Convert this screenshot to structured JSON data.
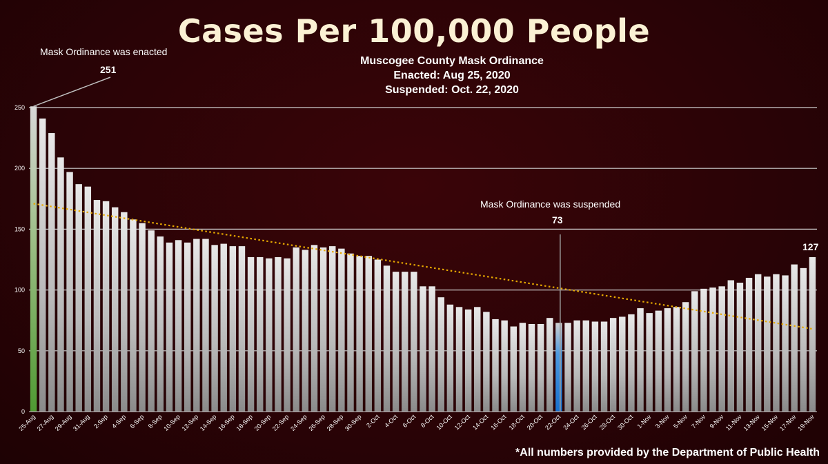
{
  "chart_data": {
    "type": "bar",
    "title": "Cases Per 100,000 People",
    "subtitle_lines": [
      "Muscogee County Mask Ordinance",
      "Enacted: Aug 25, 2020",
      "Suspended: Oct. 22, 2020"
    ],
    "footnote": "*All numbers provided by the Department of Public Health",
    "ylim": [
      0,
      250
    ],
    "yticks": [
      0,
      50,
      100,
      150,
      200,
      250
    ],
    "grid": true,
    "colors": {
      "bar": "#d9d9d9",
      "enacted_bar": "#70ad47",
      "suspended_bar": "#1f7fd6",
      "trendline": "#e6a800",
      "background": "#2a0306"
    },
    "categories": [
      "25-Aug",
      "26-Aug",
      "27-Aug",
      "28-Aug",
      "29-Aug",
      "30-Aug",
      "31-Aug",
      "1-Sep",
      "2-Sep",
      "3-Sep",
      "4-Sep",
      "5-Sep",
      "6-Sep",
      "7-Sep",
      "8-Sep",
      "9-Sep",
      "10-Sep",
      "11-Sep",
      "12-Sep",
      "13-Sep",
      "14-Sep",
      "15-Sep",
      "16-Sep",
      "17-Sep",
      "18-Sep",
      "19-Sep",
      "20-Sep",
      "21-Sep",
      "22-Sep",
      "23-Sep",
      "24-Sep",
      "25-Sep",
      "26-Sep",
      "27-Sep",
      "28-Sep",
      "29-Sep",
      "30-Sep",
      "1-Oct",
      "2-Oct",
      "3-Oct",
      "4-Oct",
      "5-Oct",
      "6-Oct",
      "7-Oct",
      "8-Oct",
      "9-Oct",
      "10-Oct",
      "11-Oct",
      "12-Oct",
      "13-Oct",
      "14-Oct",
      "15-Oct",
      "16-Oct",
      "17-Oct",
      "18-Oct",
      "19-Oct",
      "20-Oct",
      "21-Oct",
      "22-Oct",
      "23-Oct",
      "24-Oct",
      "25-Oct",
      "26-Oct",
      "27-Oct",
      "28-Oct",
      "29-Oct",
      "30-Oct",
      "31-Oct",
      "1-Nov",
      "2-Nov",
      "3-Nov",
      "4-Nov",
      "5-Nov",
      "6-Nov",
      "7-Nov",
      "8-Nov",
      "9-Nov",
      "10-Nov",
      "11-Nov",
      "12-Nov",
      "13-Nov",
      "14-Nov",
      "15-Nov",
      "16-Nov",
      "17-Nov",
      "18-Nov",
      "19-Nov"
    ],
    "xtick_labels": [
      "25-Aug",
      "27-Aug",
      "29-Aug",
      "31-Aug",
      "2-Sep",
      "4-Sep",
      "6-Sep",
      "8-Sep",
      "10-Sep",
      "12-Sep",
      "14-Sep",
      "16-Sep",
      "18-Sep",
      "20-Sep",
      "22-Sep",
      "24-Sep",
      "26-Sep",
      "28-Sep",
      "30-Sep",
      "2-Oct",
      "4-Oct",
      "6-Oct",
      "8-Oct",
      "10-Oct",
      "12-Oct",
      "14-Oct",
      "16-Oct",
      "18-Oct",
      "20-Oct",
      "22-Oct",
      "24-Oct",
      "26-Oct",
      "28-Oct",
      "30-Oct",
      "1-Nov",
      "3-Nov",
      "5-Nov",
      "7-Nov",
      "9-Nov",
      "11-Nov",
      "13-Nov",
      "15-Nov",
      "17-Nov",
      "19-Nov"
    ],
    "values": [
      251,
      241,
      229,
      209,
      197,
      187,
      185,
      174,
      173,
      168,
      164,
      158,
      155,
      149,
      144,
      139,
      141,
      139,
      142,
      142,
      137,
      138,
      136,
      136,
      127,
      127,
      126,
      127,
      126,
      135,
      133,
      137,
      135,
      136,
      134,
      130,
      128,
      128,
      125,
      120,
      115,
      115,
      115,
      103,
      103,
      94,
      88,
      86,
      84,
      86,
      82,
      76,
      75,
      70,
      73,
      72,
      72,
      77,
      73,
      73,
      75,
      75,
      74,
      74,
      77,
      78,
      80,
      85,
      81,
      83,
      85,
      86,
      90,
      99,
      101,
      102,
      103,
      108,
      106,
      110,
      113,
      111,
      113,
      112,
      121,
      118,
      127
    ],
    "trendline": {
      "start": 171,
      "end": 68
    },
    "annotations": {
      "enacted": {
        "label": "Mask Ordinance was enacted",
        "value": "251",
        "category": "25-Aug"
      },
      "suspended": {
        "label": "Mask Ordinance was suspended",
        "value": "73",
        "category": "22-Oct"
      },
      "last": {
        "value": "127",
        "category": "19-Nov"
      }
    }
  }
}
